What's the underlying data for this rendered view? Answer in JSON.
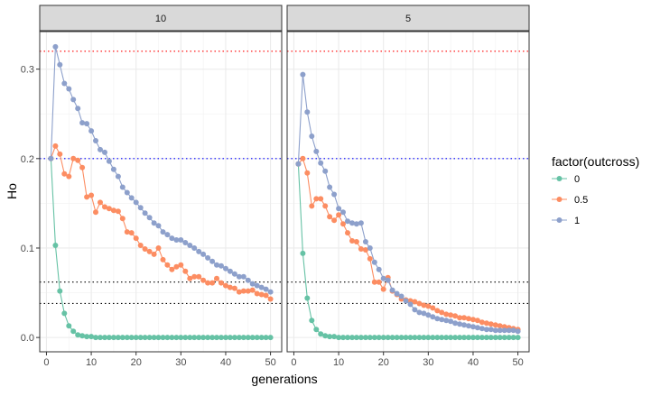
{
  "chart_data": {
    "type": "line",
    "xlabel": "generations",
    "ylabel": "Ho",
    "xlim": [
      -1.5,
      52.5
    ],
    "ylim": [
      -0.016,
      0.342
    ],
    "x_ticks": [
      0,
      10,
      20,
      30,
      40,
      50
    ],
    "y_ticks": [
      0.0,
      0.1,
      0.2,
      0.3
    ],
    "y_tick_labels": [
      "0.0",
      "0.1",
      "0.2",
      "0.3"
    ],
    "grid": true,
    "legend": {
      "title": "factor(outcross)",
      "position": "right",
      "entries": [
        {
          "label": "0",
          "color": "#66C2A5"
        },
        {
          "label": "0.5",
          "color": "#FC8D62"
        },
        {
          "label": "1",
          "color": "#8DA0CB"
        }
      ]
    },
    "reference_lines": [
      {
        "y": 0.32,
        "color": "#FF0000",
        "style": "dotted"
      },
      {
        "y": 0.2,
        "color": "#0000FF",
        "style": "dotted"
      },
      {
        "y": 0.062,
        "color": "#000000",
        "style": "dotted"
      },
      {
        "y": 0.038,
        "color": "#000000",
        "style": "dotted"
      }
    ],
    "panels": [
      {
        "strip": "10",
        "series": [
          {
            "name": "0",
            "color": "#66C2A5",
            "values": [
              0.2,
              0.103,
              0.052,
              0.027,
              0.013,
              0.007,
              0.003,
              0.002,
              0.001,
              0.001,
              0,
              0,
              0,
              0,
              0,
              0,
              0,
              0,
              0,
              0,
              0,
              0,
              0,
              0,
              0,
              0,
              0,
              0,
              0,
              0,
              0,
              0,
              0,
              0,
              0,
              0,
              0,
              0,
              0,
              0,
              0,
              0,
              0,
              0,
              0,
              0,
              0,
              0,
              0,
              0
            ]
          },
          {
            "name": "0.5",
            "color": "#FC8D62",
            "values": [
              0.2,
              0.214,
              0.205,
              0.183,
              0.18,
              0.2,
              0.198,
              0.19,
              0.157,
              0.159,
              0.14,
              0.151,
              0.146,
              0.144,
              0.142,
              0.141,
              0.133,
              0.118,
              0.117,
              0.111,
              0.103,
              0.099,
              0.096,
              0.093,
              0.1,
              0.087,
              0.081,
              0.076,
              0.079,
              0.081,
              0.074,
              0.066,
              0.068,
              0.068,
              0.064,
              0.061,
              0.061,
              0.066,
              0.061,
              0.058,
              0.056,
              0.055,
              0.051,
              0.052,
              0.052,
              0.053,
              0.049,
              0.048,
              0.047,
              0.043
            ]
          },
          {
            "name": "1",
            "color": "#8DA0CB",
            "values": [
              0.2,
              0.325,
              0.305,
              0.284,
              0.278,
              0.266,
              0.256,
              0.24,
              0.239,
              0.231,
              0.22,
              0.21,
              0.207,
              0.197,
              0.188,
              0.18,
              0.168,
              0.162,
              0.156,
              0.151,
              0.145,
              0.139,
              0.134,
              0.128,
              0.125,
              0.118,
              0.115,
              0.111,
              0.109,
              0.109,
              0.106,
              0.103,
              0.1,
              0.096,
              0.093,
              0.089,
              0.085,
              0.081,
              0.08,
              0.077,
              0.074,
              0.071,
              0.068,
              0.068,
              0.064,
              0.06,
              0.058,
              0.056,
              0.054,
              0.051
            ]
          }
        ]
      },
      {
        "strip": "5",
        "series": [
          {
            "name": "0",
            "color": "#66C2A5",
            "values": [
              0.194,
              0.094,
              0.044,
              0.019,
              0.009,
              0.004,
              0.002,
              0.001,
              0.001,
              0,
              0,
              0,
              0,
              0,
              0,
              0,
              0,
              0,
              0,
              0,
              0,
              0,
              0,
              0,
              0,
              0,
              0,
              0,
              0,
              0,
              0,
              0,
              0,
              0,
              0,
              0,
              0,
              0,
              0,
              0,
              0,
              0,
              0,
              0,
              0,
              0,
              0,
              0,
              0,
              0
            ]
          },
          {
            "name": "0.5",
            "color": "#FC8D62",
            "values": [
              0.194,
              0.2,
              0.184,
              0.147,
              0.155,
              0.155,
              0.147,
              0.135,
              0.131,
              0.137,
              0.127,
              0.117,
              0.108,
              0.107,
              0.099,
              0.098,
              0.088,
              0.062,
              0.062,
              0.054,
              0.067,
              0.052,
              0.048,
              0.043,
              0.042,
              0.041,
              0.04,
              0.038,
              0.036,
              0.035,
              0.033,
              0.03,
              0.028,
              0.026,
              0.025,
              0.024,
              0.022,
              0.022,
              0.021,
              0.02,
              0.019,
              0.017,
              0.016,
              0.015,
              0.014,
              0.013,
              0.012,
              0.011,
              0.01,
              0.009
            ]
          },
          {
            "name": "1",
            "color": "#8DA0CB",
            "values": [
              0.194,
              0.294,
              0.252,
              0.225,
              0.208,
              0.195,
              0.186,
              0.168,
              0.16,
              0.144,
              0.14,
              0.13,
              0.128,
              0.127,
              0.128,
              0.107,
              0.1,
              0.084,
              0.076,
              0.066,
              0.064,
              0.053,
              0.049,
              0.046,
              0.041,
              0.037,
              0.031,
              0.028,
              0.027,
              0.025,
              0.023,
              0.021,
              0.02,
              0.019,
              0.018,
              0.016,
              0.015,
              0.014,
              0.013,
              0.012,
              0.011,
              0.01,
              0.009,
              0.009,
              0.008,
              0.008,
              0.008,
              0.008,
              0.008,
              0.007
            ]
          }
        ]
      }
    ]
  }
}
